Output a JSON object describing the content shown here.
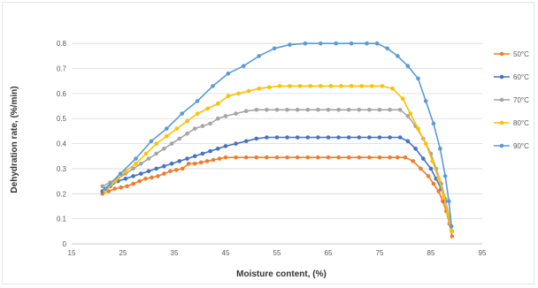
{
  "chart_data": {
    "type": "line",
    "xlabel": "Moisture content, (%)",
    "ylabel": "Dehydration rate, (%/min)",
    "xlim": [
      15,
      95
    ],
    "ylim": [
      0,
      0.85
    ],
    "xticks": [
      "15",
      "25",
      "35",
      "45",
      "55",
      "65",
      "75",
      "85",
      "95"
    ],
    "yticks": [
      "0",
      "0.1",
      "0.2",
      "0.3",
      "0.4",
      "0.5",
      "0.6",
      "0.7",
      "0.8"
    ],
    "grid": "horizontal",
    "legend_position": "right",
    "series": [
      {
        "name": "50°C",
        "color": "#ED7D31",
        "x": [
          21.0,
          22.2,
          23.4,
          24.6,
          25.8,
          27.0,
          28.2,
          29.4,
          30.6,
          31.8,
          33.0,
          34.2,
          35.4,
          36.6,
          37.8,
          39.0,
          40.2,
          41.4,
          42.6,
          43.8,
          45.0,
          47.0,
          49.0,
          51.0,
          53.0,
          55.0,
          57.0,
          59.0,
          61.0,
          63.0,
          65.0,
          67.0,
          69.0,
          71.0,
          73.0,
          75.0,
          77.0,
          78.5,
          80.0,
          81.5,
          83.0,
          84.5,
          85.5,
          86.5,
          87.3,
          88.0,
          88.6,
          89.1
        ],
        "y": [
          0.2,
          0.21,
          0.22,
          0.225,
          0.23,
          0.24,
          0.25,
          0.26,
          0.265,
          0.27,
          0.28,
          0.29,
          0.295,
          0.3,
          0.32,
          0.32,
          0.325,
          0.33,
          0.335,
          0.34,
          0.345,
          0.345,
          0.345,
          0.345,
          0.345,
          0.345,
          0.345,
          0.345,
          0.345,
          0.345,
          0.345,
          0.345,
          0.345,
          0.345,
          0.345,
          0.345,
          0.345,
          0.345,
          0.345,
          0.33,
          0.3,
          0.27,
          0.24,
          0.21,
          0.17,
          0.13,
          0.08,
          0.03
        ]
      },
      {
        "name": "60°C",
        "color": "#4472C4",
        "x": [
          21.0,
          22.5,
          24.0,
          25.5,
          27.0,
          28.5,
          30.0,
          31.5,
          33.0,
          34.5,
          36.0,
          37.5,
          39.0,
          40.5,
          42.0,
          43.5,
          45.0,
          47.0,
          49.0,
          51.0,
          53.0,
          55.0,
          57.0,
          59.0,
          61.0,
          63.0,
          65.0,
          67.0,
          69.0,
          71.0,
          73.0,
          75.0,
          77.0,
          79.0,
          80.5,
          82.0,
          83.5,
          85.0,
          86.0,
          87.0,
          87.8,
          88.5,
          89.1
        ],
        "y": [
          0.21,
          0.23,
          0.25,
          0.26,
          0.27,
          0.28,
          0.29,
          0.3,
          0.31,
          0.32,
          0.33,
          0.34,
          0.35,
          0.36,
          0.37,
          0.38,
          0.39,
          0.4,
          0.41,
          0.42,
          0.425,
          0.425,
          0.425,
          0.425,
          0.425,
          0.425,
          0.425,
          0.425,
          0.425,
          0.425,
          0.425,
          0.425,
          0.425,
          0.425,
          0.41,
          0.38,
          0.34,
          0.3,
          0.26,
          0.22,
          0.17,
          0.11,
          0.05
        ]
      },
      {
        "name": "70°C",
        "color": "#A5A5A5",
        "x": [
          21.0,
          22.5,
          24.0,
          25.5,
          27.0,
          28.5,
          30.0,
          31.5,
          33.0,
          34.5,
          36.0,
          37.5,
          39.0,
          40.5,
          42.0,
          43.5,
          45.0,
          47.0,
          49.0,
          51.0,
          53.0,
          55.0,
          57.0,
          59.0,
          61.0,
          63.0,
          65.0,
          67.0,
          69.0,
          71.0,
          73.0,
          75.0,
          77.0,
          79.0,
          80.5,
          82.0,
          83.5,
          85.0,
          86.0,
          87.0,
          87.8,
          88.5,
          89.1
        ],
        "y": [
          0.23,
          0.245,
          0.26,
          0.28,
          0.3,
          0.32,
          0.34,
          0.36,
          0.38,
          0.4,
          0.42,
          0.44,
          0.46,
          0.47,
          0.48,
          0.5,
          0.51,
          0.52,
          0.53,
          0.535,
          0.535,
          0.535,
          0.535,
          0.535,
          0.535,
          0.535,
          0.535,
          0.535,
          0.535,
          0.535,
          0.535,
          0.535,
          0.535,
          0.535,
          0.51,
          0.47,
          0.42,
          0.36,
          0.3,
          0.24,
          0.18,
          0.11,
          0.05
        ]
      },
      {
        "name": "80°C",
        "color": "#FFC000",
        "x": [
          21.5,
          23.5,
          25.5,
          27.5,
          29.5,
          31.5,
          33.5,
          35.5,
          37.5,
          39.5,
          41.5,
          43.5,
          45.5,
          47.5,
          49.5,
          51.5,
          53.5,
          55.5,
          57.5,
          59.5,
          61.5,
          63.5,
          65.5,
          67.5,
          69.5,
          71.5,
          73.5,
          75.5,
          77.5,
          79.5,
          81.0,
          82.5,
          84.0,
          85.3,
          86.5,
          87.5,
          88.3,
          89.0
        ],
        "y": [
          0.21,
          0.25,
          0.29,
          0.32,
          0.36,
          0.4,
          0.43,
          0.46,
          0.49,
          0.52,
          0.54,
          0.56,
          0.59,
          0.6,
          0.61,
          0.62,
          0.625,
          0.63,
          0.63,
          0.63,
          0.63,
          0.63,
          0.63,
          0.63,
          0.63,
          0.63,
          0.63,
          0.63,
          0.62,
          0.58,
          0.52,
          0.46,
          0.4,
          0.33,
          0.26,
          0.19,
          0.12,
          0.05
        ]
      },
      {
        "name": "90°C",
        "color": "#5B9BD5",
        "x": [
          21.5,
          24.5,
          27.5,
          30.5,
          33.5,
          36.5,
          39.5,
          42.5,
          45.5,
          48.5,
          51.5,
          54.5,
          57.5,
          60.5,
          63.5,
          66.5,
          69.5,
          72.5,
          74.5,
          76.5,
          78.5,
          80.5,
          82.5,
          84.0,
          85.5,
          86.8,
          87.8,
          88.5,
          89.0
        ],
        "y": [
          0.22,
          0.28,
          0.34,
          0.41,
          0.46,
          0.52,
          0.57,
          0.63,
          0.68,
          0.71,
          0.75,
          0.78,
          0.795,
          0.8,
          0.8,
          0.8,
          0.8,
          0.8,
          0.8,
          0.78,
          0.75,
          0.71,
          0.66,
          0.57,
          0.48,
          0.38,
          0.27,
          0.17,
          0.07
        ]
      }
    ]
  }
}
